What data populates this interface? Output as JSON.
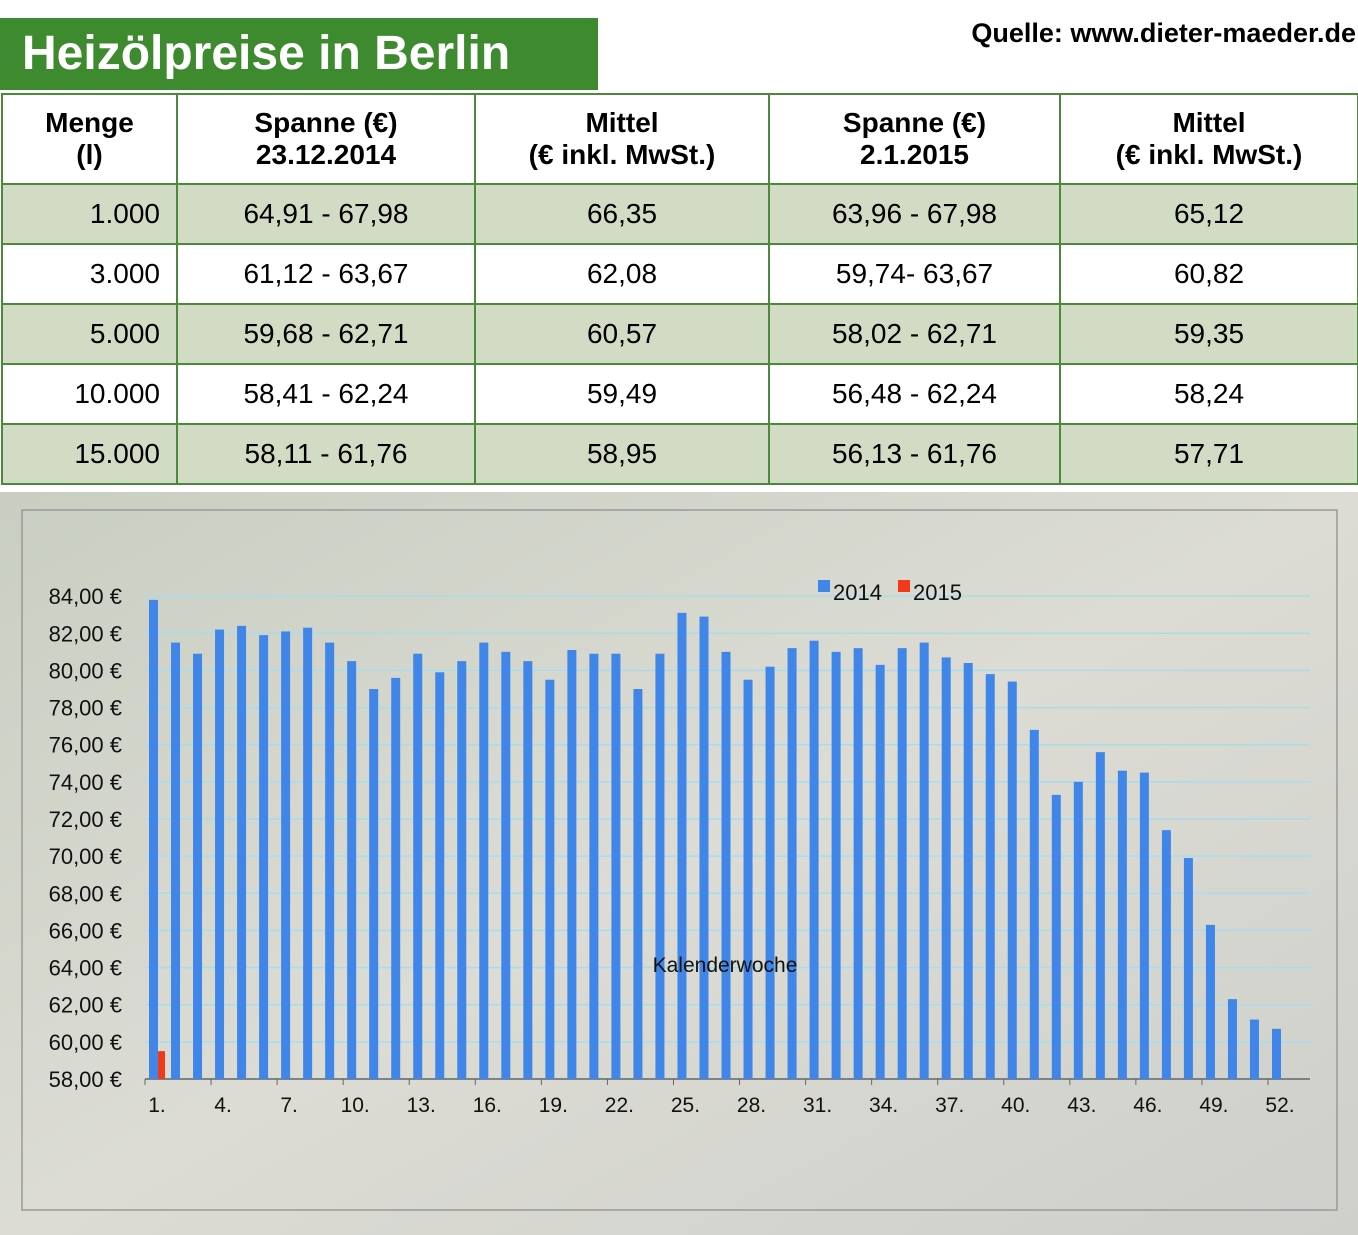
{
  "title": "Heizölpreise in Berlin",
  "source": "Quelle: www.dieter-maeder.de",
  "table": {
    "header": [
      [
        "Menge",
        "(l)"
      ],
      [
        "Spanne (€)",
        "23.12.2014"
      ],
      [
        "Mittel",
        "(€ inkl. MwSt.)"
      ],
      [
        "Spanne (€)",
        "2.1.2015"
      ],
      [
        "Mittel",
        "(€ inkl. MwSt.)"
      ]
    ],
    "rows": [
      [
        "1.000",
        "64,91 - 67,98",
        "66,35",
        "63,96 - 67,98",
        "65,12"
      ],
      [
        "3.000",
        "61,12 - 63,67",
        "62,08",
        "59,74- 63,67",
        "60,82"
      ],
      [
        "5.000",
        "59,68 - 62,71",
        "60,57",
        "58,02 - 62,71",
        "59,35"
      ],
      [
        "10.000",
        "58,41 - 62,24",
        "59,49",
        "56,48 - 62,24",
        "58,24"
      ],
      [
        "15.000",
        "58,11 - 61,76",
        "58,95",
        "56,13 - 61,76",
        "57,71"
      ]
    ]
  },
  "chart_data": {
    "type": "bar",
    "x_label": "Kalenderwoche",
    "categories": [
      "1.",
      null,
      null,
      "4.",
      null,
      null,
      "7.",
      null,
      null,
      "10.",
      null,
      null,
      "13.",
      null,
      null,
      "16.",
      null,
      null,
      "19.",
      null,
      null,
      "22.",
      null,
      null,
      "25.",
      null,
      null,
      "28.",
      null,
      null,
      "31.",
      null,
      null,
      "34.",
      null,
      null,
      "37.",
      null,
      null,
      "40.",
      null,
      null,
      "43.",
      null,
      null,
      "46.",
      null,
      null,
      "49.",
      null,
      null,
      "52."
    ],
    "series": [
      {
        "name": "2014",
        "color": "#3f86e8",
        "values": [
          83.8,
          81.5,
          80.9,
          82.2,
          82.4,
          81.9,
          82.1,
          82.3,
          81.5,
          80.5,
          79.0,
          79.6,
          80.9,
          79.9,
          80.5,
          81.5,
          81.0,
          80.5,
          79.5,
          81.1,
          80.9,
          80.9,
          79.0,
          80.9,
          83.1,
          82.9,
          81.0,
          79.5,
          80.2,
          81.2,
          81.6,
          81.0,
          81.2,
          80.3,
          81.2,
          81.5,
          80.7,
          80.4,
          79.8,
          79.4,
          76.8,
          73.3,
          74.0,
          75.6,
          74.6,
          74.5,
          71.4,
          69.9,
          66.3,
          62.3,
          61.2,
          60.7
        ]
      },
      {
        "name": "2015",
        "color": "#f03a1a",
        "values": [
          59.5,
          null,
          null,
          null,
          null,
          null,
          null,
          null,
          null,
          null,
          null,
          null,
          null,
          null,
          null,
          null,
          null,
          null,
          null,
          null,
          null,
          null,
          null,
          null,
          null,
          null,
          null,
          null,
          null,
          null,
          null,
          null,
          null,
          null,
          null,
          null,
          null,
          null,
          null,
          null,
          null,
          null,
          null,
          null,
          null,
          null,
          null,
          null,
          null,
          null,
          null,
          null
        ]
      }
    ],
    "ylim": [
      58,
      84.6
    ],
    "yticks": [
      {
        "value": 58,
        "label": "58,00 €"
      },
      {
        "value": 60,
        "label": "60,00 €"
      },
      {
        "value": 62,
        "label": "62,00 €"
      },
      {
        "value": 64,
        "label": "64,00 €"
      },
      {
        "value": 66,
        "label": "66,00 €"
      },
      {
        "value": 68,
        "label": "68,00 €"
      },
      {
        "value": 70,
        "label": "70,00 €"
      },
      {
        "value": 72,
        "label": "72,00 €"
      },
      {
        "value": 74,
        "label": "74,00 €"
      },
      {
        "value": 76,
        "label": "76,00 €"
      },
      {
        "value": 78,
        "label": "78,00 €"
      },
      {
        "value": 80,
        "label": "80,00 €"
      },
      {
        "value": 82,
        "label": "82,00 €"
      },
      {
        "value": 84,
        "label": "84,00 €"
      }
    ],
    "grid": true,
    "legend": "top"
  }
}
